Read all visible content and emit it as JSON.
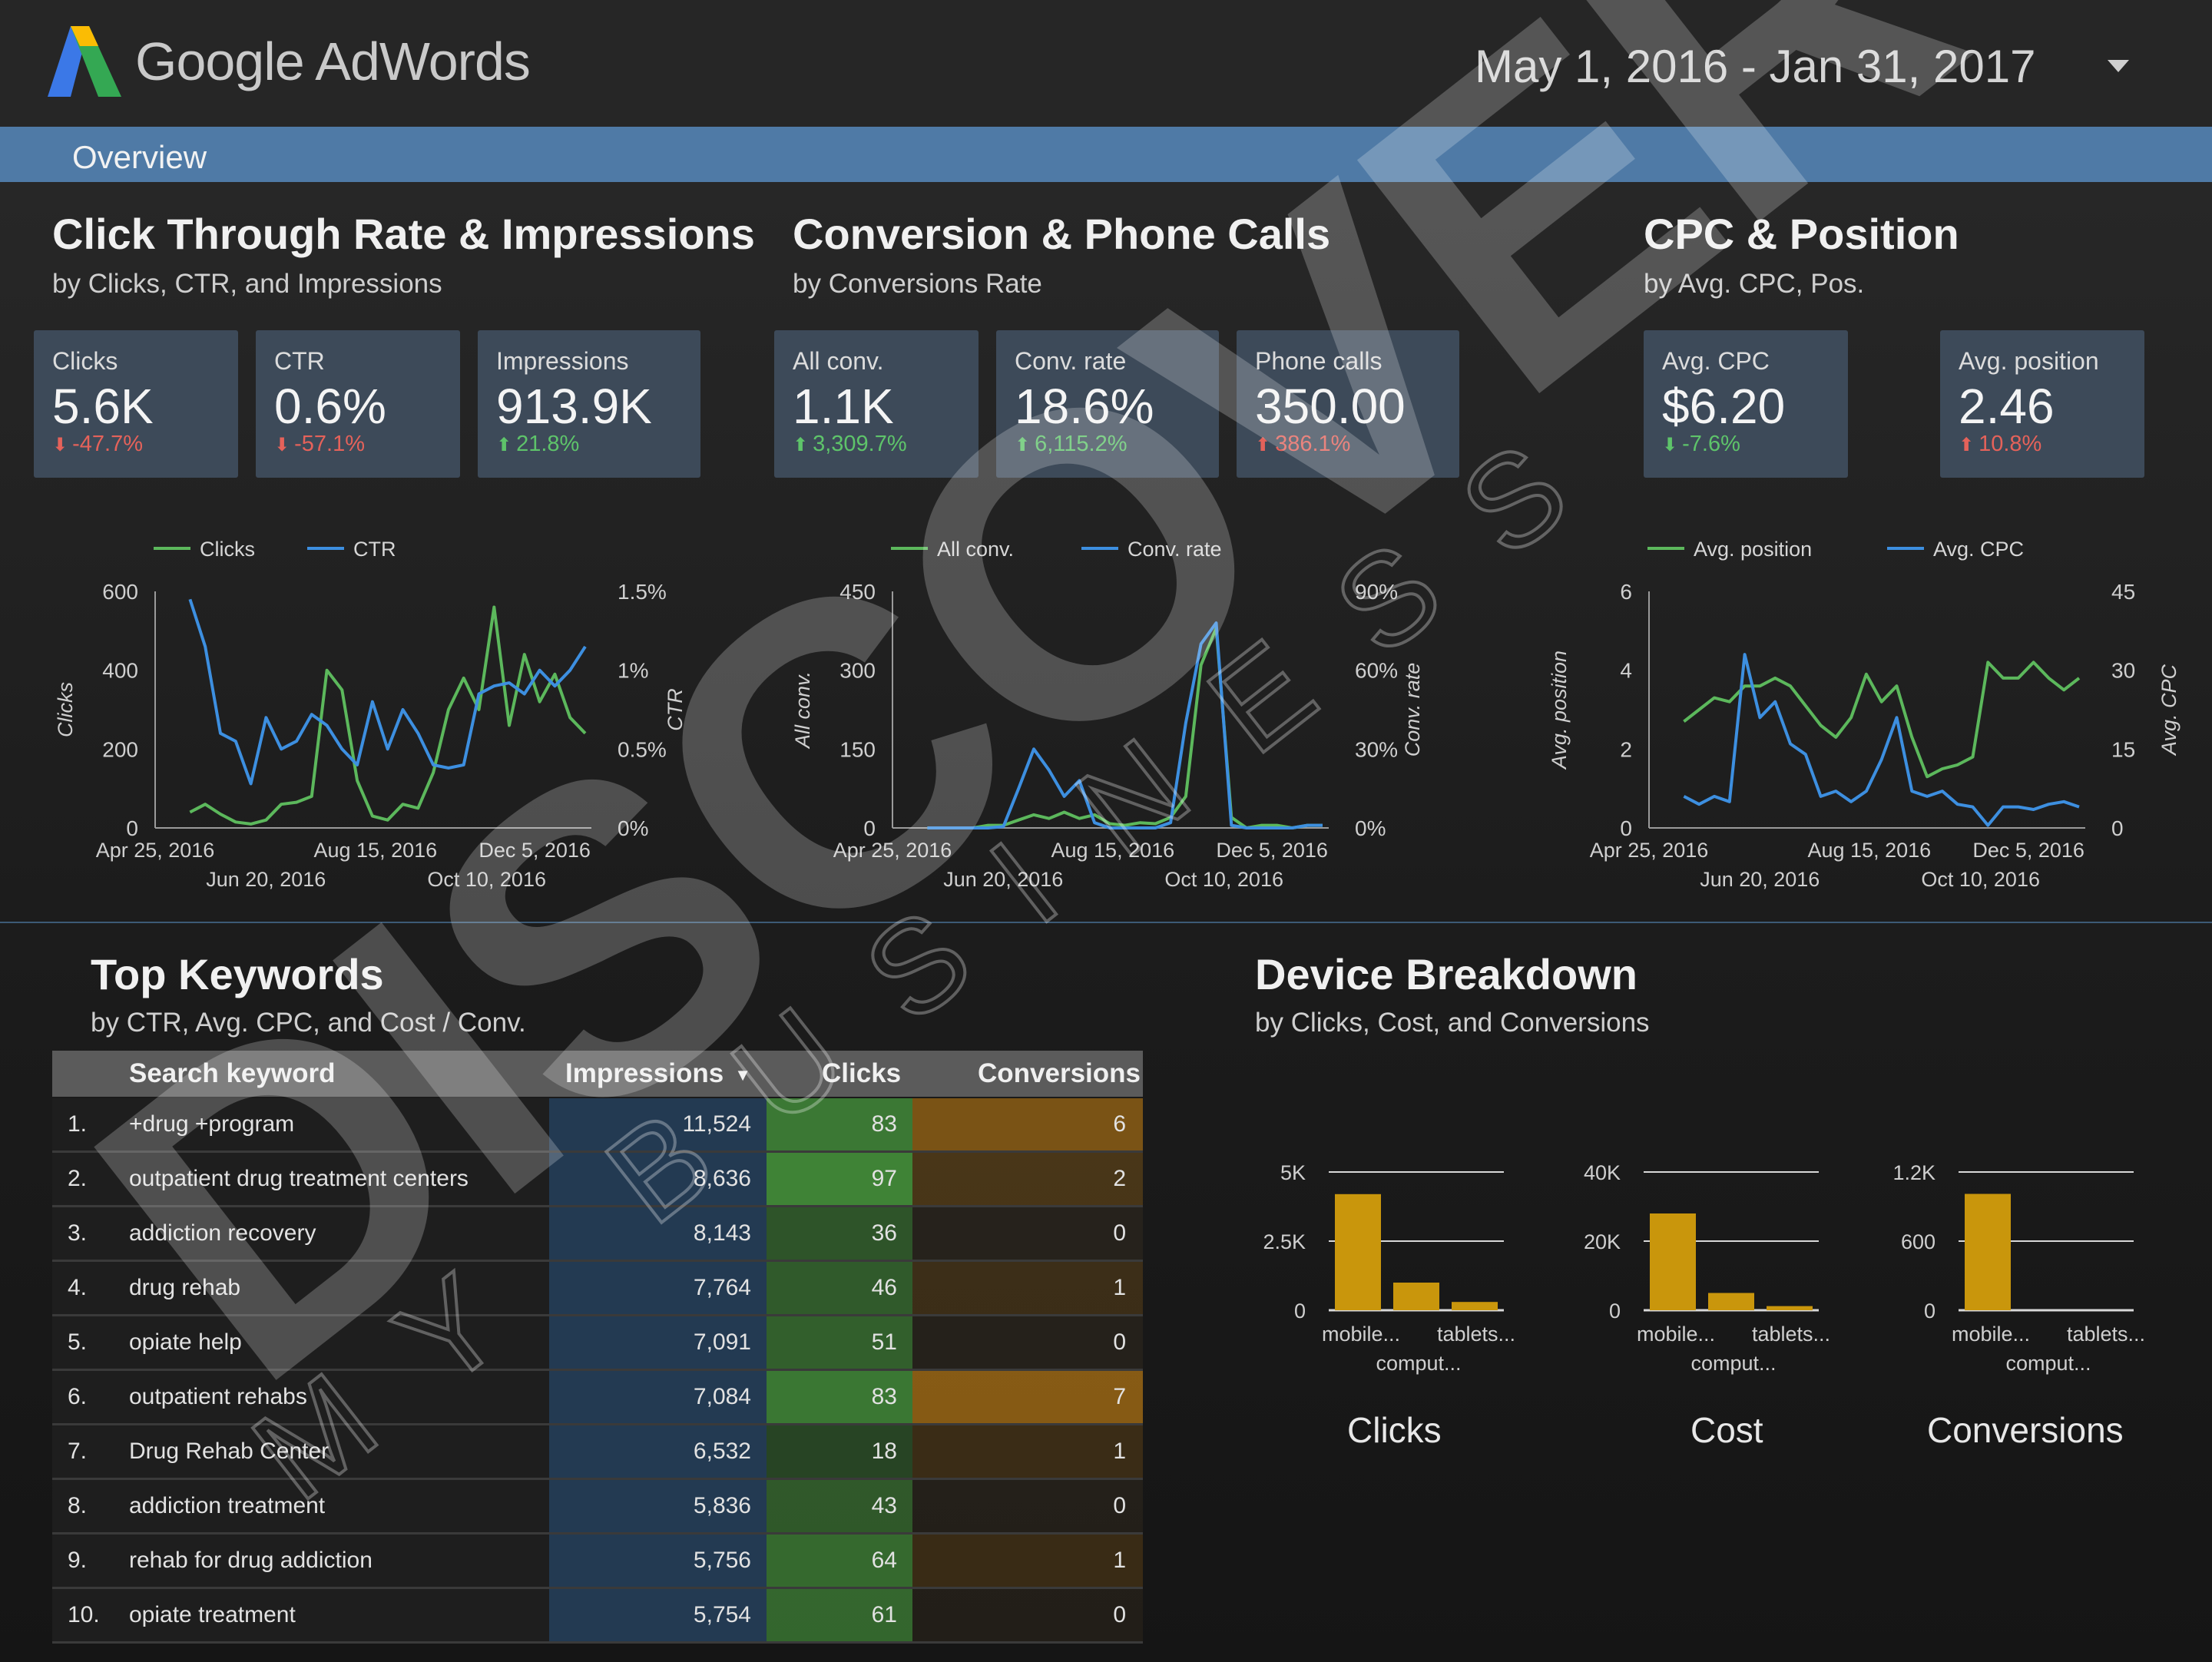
{
  "header": {
    "brand": "Google AdWords",
    "date_range": "May 1, 2016 - Jan 31, 2017",
    "overview_label": "Overview"
  },
  "sections": {
    "ctr": {
      "title": "Click Through Rate & Impressions",
      "subtitle": "by Clicks, CTR, and Impressions"
    },
    "conv": {
      "title": "Conversion & Phone Calls",
      "subtitle": "by Conversions Rate"
    },
    "cpc": {
      "title": "CPC & Position",
      "subtitle": "by Avg. CPC, Pos."
    },
    "keywords": {
      "title": "Top Keywords",
      "subtitle": "by CTR, Avg. CPC, and Cost / Conv."
    },
    "device": {
      "title": "Device Breakdown",
      "subtitle": "by Clicks, Cost, and Conversions"
    }
  },
  "kpis": [
    {
      "label": "Clicks",
      "value": "5.6K",
      "delta": "-47.7%",
      "direction": "down"
    },
    {
      "label": "CTR",
      "value": "0.6%",
      "delta": "-57.1%",
      "direction": "down"
    },
    {
      "label": "Impressions",
      "value": "913.9K",
      "delta": "21.8%",
      "direction": "up"
    },
    {
      "label": "All conv.",
      "value": "1.1K",
      "delta": "3,309.7%",
      "direction": "up"
    },
    {
      "label": "Conv. rate",
      "value": "18.6%",
      "delta": "6,115.2%",
      "direction": "up"
    },
    {
      "label": "Phone calls",
      "value": "350.00",
      "delta": "386.1%",
      "direction": "up-bad"
    },
    {
      "label": "Avg. CPC",
      "value": "$6.20",
      "delta": "-7.6%",
      "direction": "down-good"
    },
    {
      "label": "Avg. position",
      "value": "2.46",
      "delta": "10.8%",
      "direction": "up-bad"
    }
  ],
  "colors": {
    "green": "#5cb85c",
    "blue": "#3d8fe0",
    "gold": "#c9960c",
    "up": "#5ec46a",
    "down": "#e5625a"
  },
  "chart_data": [
    {
      "type": "line",
      "legend": [
        "Clicks",
        "CTR"
      ],
      "ylabel_left": "Clicks",
      "ylabel_right": "CTR",
      "ylim_left": [
        0,
        600
      ],
      "yticks_left": [
        "0",
        "200",
        "400",
        "600"
      ],
      "ylim_right": [
        0,
        1.5
      ],
      "yticks_right": [
        "0%",
        "0.5%",
        "1%",
        "1.5%"
      ],
      "xticks_top": [
        "Apr 25, 2016",
        "Aug 15, 2016",
        "Dec 5, 2016"
      ],
      "xticks_bottom": [
        "Jun 20, 2016",
        "Oct 10, 2016"
      ],
      "series": [
        {
          "name": "Clicks",
          "axis": "left",
          "values": [
            40,
            60,
            35,
            15,
            10,
            20,
            60,
            65,
            80,
            400,
            350,
            120,
            30,
            20,
            60,
            50,
            140,
            300,
            380,
            300,
            560,
            260,
            440,
            320,
            390,
            280,
            240
          ]
        },
        {
          "name": "CTR",
          "axis": "right",
          "values": [
            1.45,
            1.15,
            0.6,
            0.55,
            0.28,
            0.7,
            0.5,
            0.55,
            0.72,
            0.65,
            0.5,
            0.4,
            0.8,
            0.5,
            0.75,
            0.6,
            0.4,
            0.38,
            0.4,
            0.85,
            0.9,
            0.92,
            0.85,
            1.0,
            0.9,
            1.0,
            1.15
          ]
        }
      ]
    },
    {
      "type": "line",
      "legend": [
        "All conv.",
        "Conv. rate"
      ],
      "ylabel_left": "All conv.",
      "ylabel_right": "Conv. rate",
      "ylim_left": [
        0,
        450
      ],
      "yticks_left": [
        "0",
        "150",
        "300",
        "450"
      ],
      "ylim_right": [
        0,
        90
      ],
      "yticks_right": [
        "0%",
        "30%",
        "60%",
        "90%"
      ],
      "xticks_top": [
        "Apr 25, 2016",
        "Aug 15, 2016",
        "Dec 5, 2016"
      ],
      "xticks_bottom": [
        "Jun 20, 2016",
        "Oct 10, 2016"
      ],
      "series": [
        {
          "name": "All conv.",
          "axis": "left",
          "values": [
            0,
            0,
            0,
            0,
            5,
            5,
            15,
            25,
            18,
            30,
            18,
            25,
            8,
            5,
            10,
            8,
            20,
            60,
            310,
            380,
            20,
            0,
            5,
            5,
            0,
            5,
            5
          ]
        },
        {
          "name": "Conv. rate",
          "axis": "right",
          "values": [
            0,
            0,
            0,
            0,
            0,
            0.5,
            15,
            30,
            22,
            12,
            18,
            2,
            0,
            0,
            0,
            0,
            2,
            40,
            70,
            78,
            1,
            0,
            0,
            0,
            0,
            1,
            1
          ]
        }
      ]
    },
    {
      "type": "line",
      "legend": [
        "Avg. position",
        "Avg. CPC"
      ],
      "ylabel_left": "Avg. position",
      "ylabel_right": "Avg. CPC",
      "ylim_left": [
        0,
        6
      ],
      "yticks_left": [
        "0",
        "2",
        "4",
        "6"
      ],
      "ylim_right": [
        0,
        45
      ],
      "yticks_right": [
        "0",
        "15",
        "30",
        "45"
      ],
      "xticks_top": [
        "Apr 25, 2016",
        "Aug 15, 2016",
        "Dec 5, 2016"
      ],
      "xticks_bottom": [
        "Jun 20, 2016",
        "Oct 10, 2016"
      ],
      "series": [
        {
          "name": "Avg. position",
          "axis": "left",
          "values": [
            2.7,
            3.0,
            3.3,
            3.2,
            3.6,
            3.6,
            3.8,
            3.6,
            3.1,
            2.6,
            2.3,
            2.8,
            3.9,
            3.2,
            3.6,
            2.3,
            1.3,
            1.5,
            1.6,
            1.8,
            4.2,
            3.8,
            3.8,
            4.2,
            3.8,
            3.5,
            3.8
          ]
        },
        {
          "name": "Avg. CPC",
          "axis": "right",
          "values": [
            6,
            4.5,
            6,
            5,
            33,
            21,
            24,
            16,
            14,
            6,
            7,
            5,
            7,
            13,
            21,
            7,
            6,
            7,
            4.5,
            4,
            0.5,
            4,
            4,
            3.5,
            4.5,
            5,
            4
          ]
        }
      ]
    },
    {
      "type": "bar",
      "title": "Clicks",
      "categories": [
        "mobile...",
        "comput...",
        "tablets..."
      ],
      "values": [
        4200,
        1000,
        300
      ],
      "ylim": [
        0,
        5000
      ],
      "yticks": [
        "0",
        "2.5K",
        "5K"
      ]
    },
    {
      "type": "bar",
      "title": "Cost",
      "categories": [
        "mobile...",
        "comput...",
        "tablets..."
      ],
      "values": [
        28000,
        5000,
        1200
      ],
      "ylim": [
        0,
        40000
      ],
      "yticks": [
        "0",
        "20K",
        "40K"
      ]
    },
    {
      "type": "bar",
      "title": "Conversions",
      "categories": [
        "mobile...",
        "comput...",
        "tablets..."
      ],
      "values": [
        1010,
        0,
        0
      ],
      "ylim": [
        0,
        1200
      ],
      "yticks": [
        "0",
        "600",
        "1.2K"
      ]
    }
  ],
  "keywords": {
    "headers": {
      "keyword": "Search keyword",
      "impressions": "Impressions",
      "clicks": "Clicks",
      "conversions": "Conversions"
    },
    "rows": [
      {
        "num": "1.",
        "keyword": "+drug +program",
        "impressions": "11,524",
        "clicks": "83",
        "conversions": "6"
      },
      {
        "num": "2.",
        "keyword": "outpatient drug treatment centers",
        "impressions": "8,636",
        "clicks": "97",
        "conversions": "2"
      },
      {
        "num": "3.",
        "keyword": "addiction recovery",
        "impressions": "8,143",
        "clicks": "36",
        "conversions": "0"
      },
      {
        "num": "4.",
        "keyword": "drug rehab",
        "impressions": "7,764",
        "clicks": "46",
        "conversions": "1"
      },
      {
        "num": "5.",
        "keyword": "opiate help",
        "impressions": "7,091",
        "clicks": "51",
        "conversions": "0"
      },
      {
        "num": "6.",
        "keyword": "outpatient rehabs",
        "impressions": "7,084",
        "clicks": "83",
        "conversions": "7"
      },
      {
        "num": "7.",
        "keyword": "Drug Rehab Center",
        "impressions": "6,532",
        "clicks": "18",
        "conversions": "1"
      },
      {
        "num": "8.",
        "keyword": "addiction treatment",
        "impressions": "5,836",
        "clicks": "43",
        "conversions": "0"
      },
      {
        "num": "9.",
        "keyword": "rehab for drug addiction",
        "impressions": "5,756",
        "clicks": "64",
        "conversions": "1"
      },
      {
        "num": "10.",
        "keyword": "opiate treatment",
        "impressions": "5,754",
        "clicks": "61",
        "conversions": "0"
      }
    ]
  },
  "watermark": {
    "word": "DISCOVER",
    "tagline": "MY BUSINESS"
  }
}
